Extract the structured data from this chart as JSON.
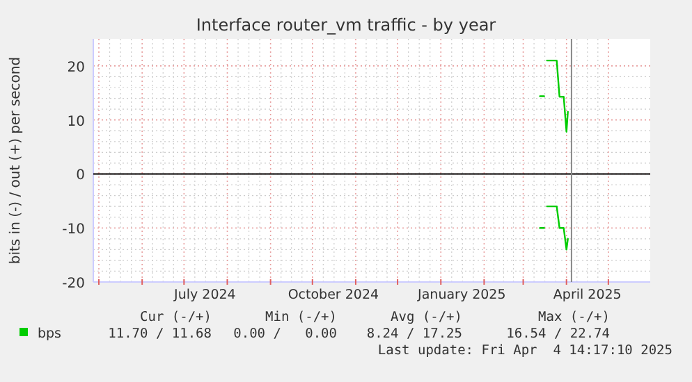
{
  "chart_data": {
    "type": "line",
    "title": "Interface router_vm traffic - by year",
    "ylabel": "bits in (-) / out (+) per second",
    "x": [
      "2025-03-18",
      "2025-03-25",
      "2025-03-27",
      "2025-03-30",
      "2025-04-01",
      "2025-04-02"
    ],
    "series": [
      {
        "name": "bps",
        "color": "#00cc00",
        "values": [
          21,
          21,
          14.3,
          14.3,
          7.8,
          11.5
        ]
      },
      {
        "color": "#00cc00",
        "values": [
          -6,
          -6,
          -10,
          -10,
          -14,
          -12
        ]
      },
      {
        "color": "#00c800",
        "x": [
          "2025-03-13",
          "2025-03-16"
        ],
        "values": [
          -10,
          -10
        ]
      },
      {
        "color": "#00cc00",
        "x": [
          "2025-03-13",
          "2025-03-16"
        ],
        "values": [
          14.4,
          14.4
        ]
      }
    ],
    "xlim": [
      "2024-04-27",
      "2025-05-31"
    ],
    "xticks": [
      {
        "value": "2024-05-01",
        "label": null
      },
      {
        "value": "2024-06-01",
        "label": null
      },
      {
        "value": "2024-07-01",
        "label": null
      },
      {
        "value": "2024-07-16",
        "label": "July 2024"
      },
      {
        "value": "2024-08-01",
        "label": null
      },
      {
        "value": "2024-09-01",
        "label": null
      },
      {
        "value": "2024-10-01",
        "label": null
      },
      {
        "value": "2024-10-16",
        "label": "October 2024"
      },
      {
        "value": "2024-11-01",
        "label": null
      },
      {
        "value": "2024-12-01",
        "label": null
      },
      {
        "value": "2025-01-01",
        "label": null
      },
      {
        "value": "2025-01-16",
        "label": "January 2025"
      },
      {
        "value": "2025-02-01",
        "label": null
      },
      {
        "value": "2025-03-01",
        "label": null
      },
      {
        "value": "2025-04-01",
        "label": null
      },
      {
        "value": "2025-04-16",
        "label": "April 2025"
      },
      {
        "value": "2025-05-01",
        "label": null
      }
    ],
    "ylim": [
      -20,
      25
    ],
    "yticks": [
      -20,
      -10,
      0,
      10,
      20
    ],
    "grid": true,
    "legend": "bottom left",
    "line_style": "solid",
    "ref_lines": [
      {
        "axis": "y",
        "value": 0,
        "color": "#000000"
      },
      {
        "axis": "x",
        "value": "2025-04-04T14:17",
        "color": "#888888"
      }
    ],
    "annotations": [
      "Cur (-/+)",
      "Min (-/+)",
      "Avg (-/+)",
      "Max (-/+)",
      "11.70 / 11.68",
      "0.00 /   0.00",
      "8.24 / 17.25",
      "16.54 / 22.74",
      "Last update: Fri Apr  4 14:17:10 2025"
    ]
  }
}
